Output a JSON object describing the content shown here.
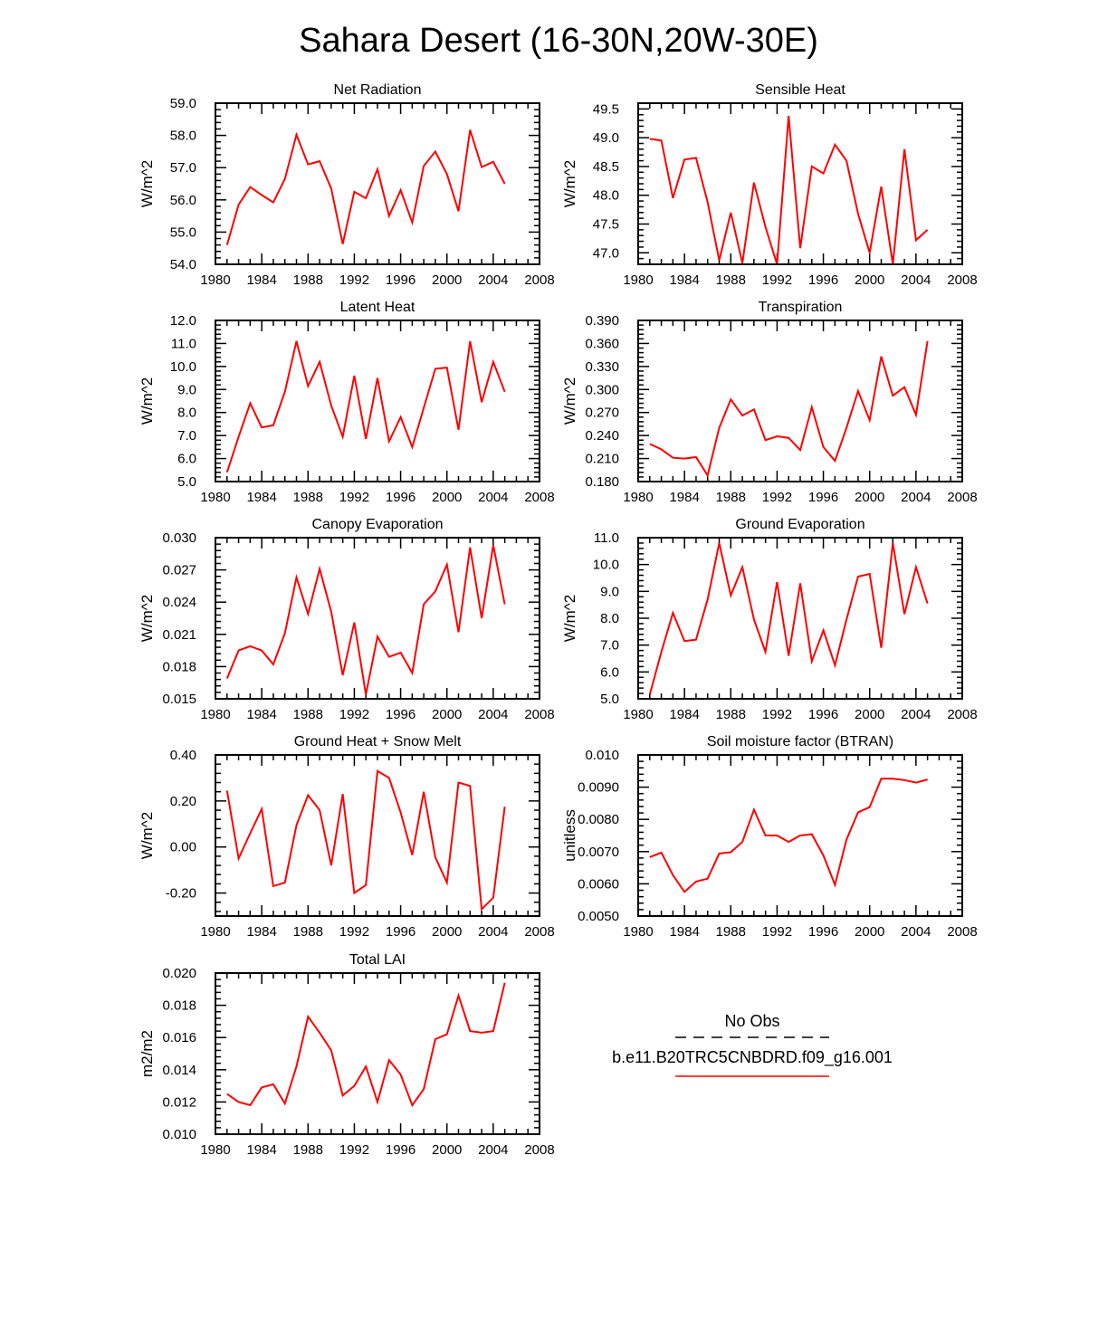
{
  "title": "Sahara Desert (16-30N,20W-30E)",
  "colors": {
    "model_line": "#ff0000",
    "obs_line": "#000000",
    "axis": "#000000"
  },
  "legend": {
    "obs_label": "No Obs",
    "model_label": "b.e11.B20TRC5CNBDRD.f09_g16.001"
  },
  "x_tick_labels": [
    "1980",
    "1984",
    "1988",
    "1992",
    "1996",
    "2000",
    "2004",
    "2008"
  ],
  "chart_data": [
    {
      "type": "line",
      "title": "Net Radiation",
      "ylabel": "W/m^2",
      "xlim": [
        1980,
        2008
      ],
      "ylim": [
        54.0,
        59.0
      ],
      "yticks": [
        54.0,
        55.0,
        56.0,
        57.0,
        58.0,
        59.0
      ],
      "ytick_labels": [
        "54.0",
        "55.0",
        "56.0",
        "57.0",
        "58.0",
        "59.0"
      ],
      "series": [
        {
          "name": "b.e11.B20TRC5CNBDRD.f09_g16.001",
          "x": [
            1981,
            1982,
            1983,
            1984,
            1985,
            1986,
            1987,
            1988,
            1989,
            1990,
            1991,
            1992,
            1993,
            1994,
            1995,
            1996,
            1997,
            1998,
            1999,
            2000,
            2001,
            2002,
            2003,
            2004,
            2005
          ],
          "values": [
            54.6,
            55.85,
            56.4,
            56.15,
            55.92,
            56.65,
            58.02,
            57.1,
            57.2,
            56.35,
            54.63,
            56.25,
            56.05,
            56.95,
            55.5,
            56.3,
            55.3,
            57.05,
            57.5,
            56.8,
            55.65,
            58.17,
            57.02,
            57.18,
            56.5
          ]
        }
      ]
    },
    {
      "type": "line",
      "title": "Sensible Heat",
      "ylabel": "W/m^2",
      "xlim": [
        1980,
        2008
      ],
      "ylim": [
        46.8,
        49.6
      ],
      "yticks": [
        47.0,
        47.5,
        48.0,
        48.5,
        49.0,
        49.5
      ],
      "ytick_labels": [
        "47.0",
        "47.5",
        "48.0",
        "48.5",
        "49.0",
        "49.5"
      ],
      "series": [
        {
          "name": "b.e11.B20TRC5CNBDRD.f09_g16.001",
          "x": [
            1981,
            1982,
            1983,
            1984,
            1985,
            1986,
            1987,
            1988,
            1989,
            1990,
            1991,
            1992,
            1993,
            1994,
            1995,
            1996,
            1997,
            1998,
            1999,
            2000,
            2001,
            2002,
            2003,
            2004,
            2005
          ],
          "values": [
            48.98,
            48.95,
            47.95,
            48.62,
            48.65,
            47.88,
            46.87,
            47.7,
            46.82,
            48.22,
            47.45,
            46.8,
            49.38,
            47.08,
            48.5,
            48.38,
            48.88,
            48.6,
            47.68,
            47.0,
            48.15,
            46.8,
            48.8,
            47.22,
            47.4
          ]
        }
      ]
    },
    {
      "type": "line",
      "title": "Latent Heat",
      "ylabel": "W/m^2",
      "xlim": [
        1980,
        2008
      ],
      "ylim": [
        5.0,
        12.0
      ],
      "yticks": [
        5.0,
        6.0,
        7.0,
        8.0,
        9.0,
        10.0,
        11.0,
        12.0
      ],
      "ytick_labels": [
        "5.0",
        "6.0",
        "7.0",
        "8.0",
        "9.0",
        "10.0",
        "11.0",
        "12.0"
      ],
      "series": [
        {
          "name": "b.e11.B20TRC5CNBDRD.f09_g16.001",
          "x": [
            1981,
            1982,
            1983,
            1984,
            1985,
            1986,
            1987,
            1988,
            1989,
            1990,
            1991,
            1992,
            1993,
            1994,
            1995,
            1996,
            1997,
            1998,
            1999,
            2000,
            2001,
            2002,
            2003,
            2004,
            2005
          ],
          "values": [
            5.4,
            6.95,
            8.4,
            7.35,
            7.45,
            8.9,
            11.1,
            9.15,
            10.2,
            8.3,
            6.95,
            9.6,
            6.85,
            9.5,
            6.75,
            7.8,
            6.5,
            8.2,
            9.9,
            9.95,
            7.25,
            11.1,
            8.45,
            10.2,
            8.9
          ]
        }
      ]
    },
    {
      "type": "line",
      "title": "Transpiration",
      "ylabel": "W/m^2",
      "xlim": [
        1980,
        2008
      ],
      "ylim": [
        0.18,
        0.39
      ],
      "yticks": [
        0.18,
        0.21,
        0.24,
        0.27,
        0.3,
        0.33,
        0.36,
        0.39
      ],
      "ytick_labels": [
        "0.180",
        "0.210",
        "0.240",
        "0.270",
        "0.300",
        "0.330",
        "0.360",
        "0.390"
      ],
      "series": [
        {
          "name": "b.e11.B20TRC5CNBDRD.f09_g16.001",
          "x": [
            1981,
            1982,
            1983,
            1984,
            1985,
            1986,
            1987,
            1988,
            1989,
            1990,
            1991,
            1992,
            1993,
            1994,
            1995,
            1996,
            1997,
            1998,
            1999,
            2000,
            2001,
            2002,
            2003,
            2004,
            2005
          ],
          "values": [
            0.229,
            0.222,
            0.211,
            0.21,
            0.212,
            0.188,
            0.25,
            0.287,
            0.266,
            0.274,
            0.234,
            0.239,
            0.237,
            0.221,
            0.277,
            0.225,
            0.207,
            0.25,
            0.298,
            0.26,
            0.343,
            0.292,
            0.303,
            0.267,
            0.363
          ]
        }
      ]
    },
    {
      "type": "line",
      "title": "Canopy Evaporation",
      "ylabel": "W/m^2",
      "xlim": [
        1980,
        2008
      ],
      "ylim": [
        0.015,
        0.03
      ],
      "yticks": [
        0.015,
        0.018,
        0.021,
        0.024,
        0.027,
        0.03
      ],
      "ytick_labels": [
        "0.015",
        "0.018",
        "0.021",
        "0.024",
        "0.027",
        "0.030"
      ],
      "series": [
        {
          "name": "b.e11.B20TRC5CNBDRD.f09_g16.001",
          "x": [
            1981,
            1982,
            1983,
            1984,
            1985,
            1986,
            1987,
            1988,
            1989,
            1990,
            1991,
            1992,
            1993,
            1994,
            1995,
            1996,
            1997,
            1998,
            1999,
            2000,
            2001,
            2002,
            2003,
            2004,
            2005
          ],
          "values": [
            0.0169,
            0.0195,
            0.0199,
            0.0195,
            0.0182,
            0.0211,
            0.0263,
            0.0229,
            0.0271,
            0.0231,
            0.0172,
            0.0221,
            0.0154,
            0.0208,
            0.0189,
            0.0193,
            0.0174,
            0.0238,
            0.025,
            0.0275,
            0.0212,
            0.0291,
            0.0225,
            0.0293,
            0.0238
          ]
        }
      ]
    },
    {
      "type": "line",
      "title": "Ground Evaporation",
      "ylabel": "W/m^2",
      "xlim": [
        1980,
        2008
      ],
      "ylim": [
        5.0,
        11.0
      ],
      "yticks": [
        5.0,
        6.0,
        7.0,
        8.0,
        9.0,
        10.0,
        11.0
      ],
      "ytick_labels": [
        "5.0",
        "6.0",
        "7.0",
        "8.0",
        "9.0",
        "10.0",
        "11.0"
      ],
      "series": [
        {
          "name": "b.e11.B20TRC5CNBDRD.f09_g16.001",
          "x": [
            1981,
            1982,
            1983,
            1984,
            1985,
            1986,
            1987,
            1988,
            1989,
            1990,
            1991,
            1992,
            1993,
            1994,
            1995,
            1996,
            1997,
            1998,
            1999,
            2000,
            2001,
            2002,
            2003,
            2004,
            2005
          ],
          "values": [
            5.15,
            6.75,
            8.2,
            7.15,
            7.2,
            8.7,
            10.8,
            8.85,
            9.9,
            7.95,
            6.75,
            9.35,
            6.6,
            9.3,
            6.4,
            7.55,
            6.25,
            7.95,
            9.55,
            9.65,
            6.9,
            10.8,
            8.15,
            9.9,
            8.55
          ]
        }
      ]
    },
    {
      "type": "line",
      "title": "Ground Heat + Snow Melt",
      "ylabel": "W/m^2",
      "xlim": [
        1980,
        2008
      ],
      "ylim": [
        -0.3,
        0.4
      ],
      "yticks": [
        -0.2,
        0.0,
        0.2,
        0.4
      ],
      "ytick_labels": [
        "-0.20",
        "0.00",
        "0.20",
        "0.40"
      ],
      "series": [
        {
          "name": "b.e11.B20TRC5CNBDRD.f09_g16.001",
          "x": [
            1981,
            1982,
            1983,
            1984,
            1985,
            1986,
            1987,
            1988,
            1989,
            1990,
            1991,
            1992,
            1993,
            1994,
            1995,
            1996,
            1997,
            1998,
            1999,
            2000,
            2001,
            2002,
            2003,
            2004,
            2005
          ],
          "values": [
            0.245,
            -0.05,
            0.06,
            0.165,
            -0.17,
            -0.155,
            0.095,
            0.225,
            0.16,
            -0.08,
            0.23,
            -0.2,
            -0.165,
            0.33,
            0.3,
            0.15,
            -0.035,
            0.24,
            -0.045,
            -0.155,
            0.28,
            0.265,
            -0.27,
            -0.22,
            0.175
          ]
        }
      ]
    },
    {
      "type": "line",
      "title": "Soil moisture factor (BTRAN)",
      "ylabel": "unitless",
      "xlim": [
        1980,
        2008
      ],
      "ylim": [
        0.005,
        0.01
      ],
      "yticks": [
        0.005,
        0.006,
        0.007,
        0.008,
        0.009,
        0.01
      ],
      "ytick_labels": [
        "0.0050",
        "0.0060",
        "0.0070",
        "0.0080",
        "0.0090",
        "0.010"
      ],
      "series": [
        {
          "name": "b.e11.B20TRC5CNBDRD.f09_g16.001",
          "x": [
            1981,
            1982,
            1983,
            1984,
            1985,
            1986,
            1987,
            1988,
            1989,
            1990,
            1991,
            1992,
            1993,
            1994,
            1995,
            1996,
            1997,
            1998,
            1999,
            2000,
            2001,
            2002,
            2003,
            2004,
            2005
          ],
          "values": [
            0.00683,
            0.00697,
            0.00627,
            0.00575,
            0.00607,
            0.00616,
            0.00694,
            0.00698,
            0.0073,
            0.0083,
            0.0075,
            0.0075,
            0.0073,
            0.0075,
            0.00754,
            0.00688,
            0.00597,
            0.00737,
            0.00822,
            0.00838,
            0.00926,
            0.00926,
            0.00922,
            0.00914,
            0.00924
          ]
        }
      ]
    },
    {
      "type": "line",
      "title": "Total LAI",
      "ylabel": "m2/m2",
      "xlim": [
        1980,
        2008
      ],
      "ylim": [
        0.01,
        0.02
      ],
      "yticks": [
        0.01,
        0.012,
        0.014,
        0.016,
        0.018,
        0.02
      ],
      "ytick_labels": [
        "0.010",
        "0.012",
        "0.014",
        "0.016",
        "0.018",
        "0.020"
      ],
      "series": [
        {
          "name": "b.e11.B20TRC5CNBDRD.f09_g16.001",
          "x": [
            1981,
            1982,
            1983,
            1984,
            1985,
            1986,
            1987,
            1988,
            1989,
            1990,
            1991,
            1992,
            1993,
            1994,
            1995,
            1996,
            1997,
            1998,
            1999,
            2000,
            2001,
            2002,
            2003,
            2004,
            2005
          ],
          "values": [
            0.0125,
            0.012,
            0.0118,
            0.0129,
            0.0131,
            0.0119,
            0.0142,
            0.0173,
            0.0163,
            0.0152,
            0.0124,
            0.013,
            0.0142,
            0.012,
            0.0146,
            0.0137,
            0.0118,
            0.0128,
            0.0159,
            0.0162,
            0.0186,
            0.0164,
            0.0163,
            0.0164,
            0.0194
          ]
        }
      ]
    }
  ]
}
